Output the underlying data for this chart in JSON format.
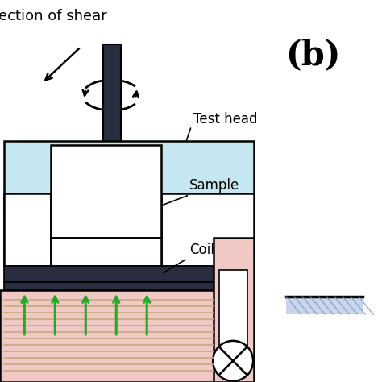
{
  "bg_color": "#ffffff",
  "light_blue": "#c5e8f0",
  "light_pink": "#f0c8c4",
  "dark_navy": "#2a2d40",
  "green_arrow": "#22aa22",
  "coil_line_color": "#c8a882",
  "coil_bg_color": "#e8b8a8",
  "label_test_head": "Test head",
  "label_sample": "Sample",
  "label_coil": "Coil",
  "label_b": "(b)",
  "label_direction": "ection of shear"
}
